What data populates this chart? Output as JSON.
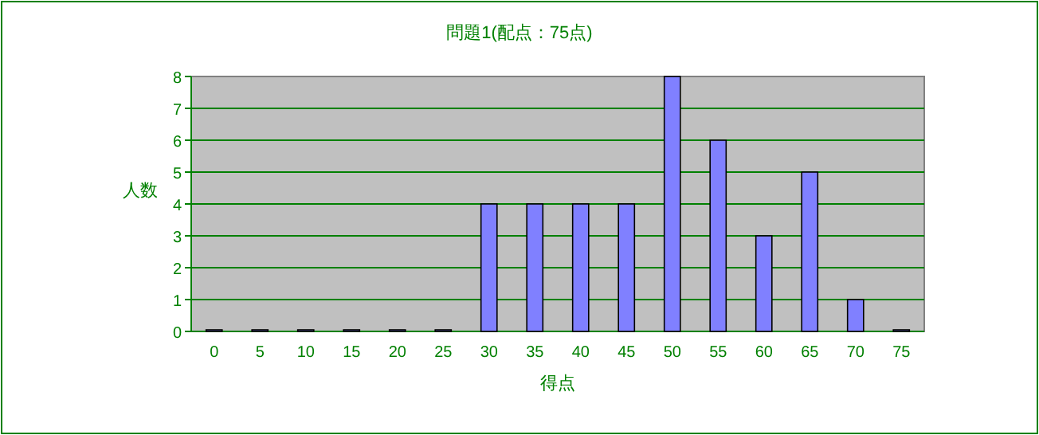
{
  "chart_data": {
    "type": "bar",
    "title": "問題1(配点：75点)",
    "xlabel": "得点",
    "ylabel": "人数",
    "categories": [
      "0",
      "5",
      "10",
      "15",
      "20",
      "25",
      "30",
      "35",
      "40",
      "45",
      "50",
      "55",
      "60",
      "65",
      "70",
      "75"
    ],
    "values": [
      0,
      0,
      0,
      0,
      0,
      0,
      4,
      4,
      4,
      4,
      8,
      6,
      3,
      5,
      1,
      0
    ],
    "color": "#8080ff",
    "ylim": [
      0,
      8
    ],
    "yticks": [
      0,
      1,
      2,
      3,
      4,
      5,
      6,
      7,
      8
    ],
    "grid": "y"
  }
}
